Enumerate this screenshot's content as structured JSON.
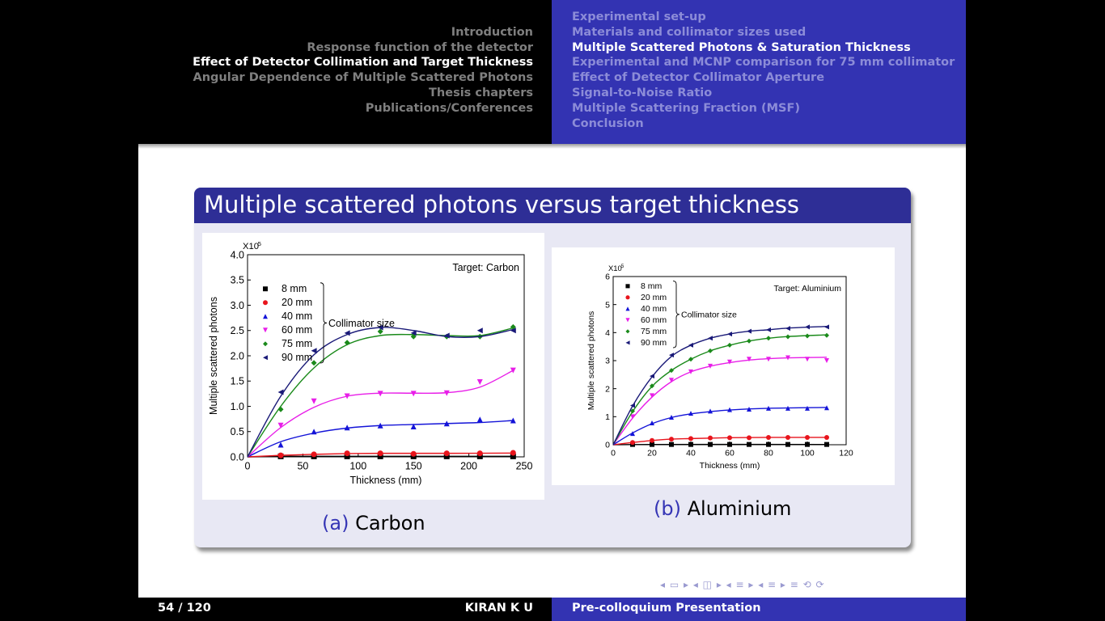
{
  "header": {
    "sections": [
      "Introduction",
      "Response function of the detector",
      "Effect of Detector Collimation and Target Thickness",
      "Angular Dependence of Multiple Scattered Photons",
      "Thesis chapters",
      "Publications/Conferences"
    ],
    "subsections": [
      "Experimental set-up",
      "Materials and collimator sizes used",
      "Multiple Scattered Photons & Saturation Thickness",
      "Experimental and MCNP comparison for 75 mm collimator",
      "Effect of Detector Collimator Aperture",
      "Signal-to-Noise Ratio",
      "Multiple Scattering Fraction (MSF)",
      "Conclusion"
    ],
    "active_section": 2,
    "active_subsection": 2
  },
  "block": {
    "title": "Multiple scattered photons versus target thickness"
  },
  "captions": {
    "a_label": "(a)",
    "a_text": "Carbon",
    "b_label": "(b)",
    "b_text": "Aluminium"
  },
  "footer": {
    "page": "54 / 120",
    "author": "KIRAN K U",
    "title": "Pre-colloquium Presentation"
  },
  "nav_symbols": "◂ ▭ ▸ ◂ ◫ ▸ ◂ ≡ ▸ ◂ ≡ ▸   ≡   ⟲ ⟳",
  "colors": {
    "8 mm": "#000000",
    "20 mm": "#e8141c",
    "40 mm": "#1414d8",
    "60 mm": "#e81ee8",
    "75 mm": "#1a8a1a",
    "90 mm": "#1a1a78"
  },
  "chart_data": [
    {
      "type": "scatter",
      "title": "",
      "annotation": "Target: Carbon",
      "legend_title": "Collimator size",
      "xlabel": "Thickness (mm)",
      "ylabel": "Multiple scattered photons",
      "y_multiplier": "X10",
      "y_exponent": "5",
      "xlim": [
        0,
        250
      ],
      "ylim": [
        0,
        4.0
      ],
      "xticks": [
        "0",
        "50",
        "100",
        "150",
        "200",
        "250"
      ],
      "yticks": [
        "0.0",
        "0.5",
        "1.0",
        "1.5",
        "2.0",
        "2.5",
        "3.0",
        "3.5",
        "4.0"
      ],
      "legend_position": "top-left",
      "x": [
        30,
        60,
        90,
        120,
        150,
        180,
        210,
        240
      ],
      "series": [
        {
          "name": "8 mm",
          "marker": "square",
          "values": [
            0.01,
            0.01,
            0.01,
            0.01,
            0.01,
            0.01,
            0.01,
            0.01
          ],
          "fit": [
            [
              0,
              0
            ],
            [
              40,
              0.01
            ],
            [
              120,
              0.01
            ],
            [
              240,
              0.01
            ]
          ]
        },
        {
          "name": "20 mm",
          "marker": "circle",
          "values": [
            0.03,
            0.05,
            0.07,
            0.07,
            0.06,
            0.07,
            0.07,
            0.08
          ],
          "fit": [
            [
              0,
              0
            ],
            [
              30,
              0.03
            ],
            [
              60,
              0.05
            ],
            [
              90,
              0.065
            ],
            [
              120,
              0.07
            ],
            [
              180,
              0.07
            ],
            [
              240,
              0.075
            ]
          ]
        },
        {
          "name": "40 mm",
          "marker": "triangle-up",
          "values": [
            0.24,
            0.5,
            0.58,
            0.62,
            0.6,
            0.66,
            0.74,
            0.72
          ],
          "fit": [
            [
              0,
              0
            ],
            [
              30,
              0.3
            ],
            [
              60,
              0.47
            ],
            [
              90,
              0.57
            ],
            [
              120,
              0.62
            ],
            [
              150,
              0.64
            ],
            [
              180,
              0.66
            ],
            [
              210,
              0.68
            ],
            [
              240,
              0.72
            ]
          ]
        },
        {
          "name": "60 mm",
          "marker": "triangle-down",
          "values": [
            0.62,
            1.1,
            1.2,
            1.25,
            1.25,
            1.26,
            1.48,
            1.71
          ],
          "fit": [
            [
              0,
              0
            ],
            [
              30,
              0.58
            ],
            [
              60,
              0.98
            ],
            [
              90,
              1.2
            ],
            [
              120,
              1.26
            ],
            [
              150,
              1.26
            ],
            [
              180,
              1.27
            ],
            [
              210,
              1.38
            ],
            [
              240,
              1.71
            ]
          ]
        },
        {
          "name": "75 mm",
          "marker": "diamond",
          "values": [
            0.94,
            1.86,
            2.26,
            2.48,
            2.38,
            2.38,
            2.38,
            2.57
          ],
          "fit": [
            [
              0,
              0
            ],
            [
              30,
              1.0
            ],
            [
              60,
              1.76
            ],
            [
              90,
              2.22
            ],
            [
              120,
              2.4
            ],
            [
              150,
              2.42
            ],
            [
              180,
              2.4
            ],
            [
              210,
              2.4
            ],
            [
              240,
              2.55
            ]
          ]
        },
        {
          "name": "90 mm",
          "marker": "triangle-left",
          "values": [
            1.28,
            2.1,
            2.45,
            2.56,
            2.45,
            2.4,
            2.5,
            2.5
          ],
          "fit": [
            [
              0,
              0
            ],
            [
              30,
              1.2
            ],
            [
              60,
              2.02
            ],
            [
              90,
              2.42
            ],
            [
              120,
              2.56
            ],
            [
              150,
              2.5
            ],
            [
              180,
              2.38
            ],
            [
              210,
              2.38
            ],
            [
              240,
              2.52
            ]
          ]
        }
      ]
    },
    {
      "type": "scatter",
      "title": "",
      "annotation": "Target: Aluminium",
      "legend_title": "Collimator size",
      "xlabel": "Thickness (mm)",
      "ylabel": "Multiple scattered photons",
      "y_multiplier": "X10",
      "y_exponent": "5",
      "xlim": [
        0,
        120
      ],
      "ylim": [
        0,
        6
      ],
      "xticks": [
        "0",
        "20",
        "40",
        "60",
        "80",
        "100",
        "120"
      ],
      "yticks": [
        "0",
        "1",
        "2",
        "3",
        "4",
        "5",
        "6"
      ],
      "legend_position": "top-left",
      "x": [
        10,
        20,
        30,
        40,
        50,
        60,
        70,
        80,
        90,
        100,
        110
      ],
      "series": [
        {
          "name": "8 mm",
          "marker": "square",
          "values": [
            0.01,
            0.01,
            0.01,
            0.01,
            0.01,
            0.01,
            0.01,
            0.01,
            0.01,
            0.01,
            0.01
          ],
          "fit": [
            [
              0,
              0
            ],
            [
              20,
              0.01
            ],
            [
              110,
              0.01
            ]
          ]
        },
        {
          "name": "20 mm",
          "marker": "circle",
          "values": [
            0.08,
            0.15,
            0.2,
            0.22,
            0.24,
            0.25,
            0.25,
            0.26,
            0.26,
            0.26,
            0.26
          ],
          "fit": [
            [
              0,
              0
            ],
            [
              10,
              0.08
            ],
            [
              20,
              0.15
            ],
            [
              30,
              0.2
            ],
            [
              40,
              0.22
            ],
            [
              60,
              0.25
            ],
            [
              80,
              0.26
            ],
            [
              110,
              0.26
            ]
          ]
        },
        {
          "name": "40 mm",
          "marker": "triangle-up",
          "values": [
            0.4,
            0.78,
            0.98,
            1.12,
            1.2,
            1.25,
            1.27,
            1.3,
            1.3,
            1.3,
            1.32
          ],
          "fit": [
            [
              0,
              0
            ],
            [
              10,
              0.42
            ],
            [
              20,
              0.75
            ],
            [
              30,
              0.97
            ],
            [
              40,
              1.1
            ],
            [
              50,
              1.18
            ],
            [
              60,
              1.24
            ],
            [
              80,
              1.3
            ],
            [
              110,
              1.33
            ]
          ]
        },
        {
          "name": "60 mm",
          "marker": "triangle-down",
          "values": [
            1.0,
            1.75,
            2.3,
            2.6,
            2.8,
            2.95,
            3.05,
            3.05,
            3.1,
            3.05,
            3.0
          ],
          "fit": [
            [
              0,
              0
            ],
            [
              10,
              0.95
            ],
            [
              20,
              1.7
            ],
            [
              30,
              2.25
            ],
            [
              40,
              2.6
            ],
            [
              50,
              2.8
            ],
            [
              60,
              2.93
            ],
            [
              70,
              3.02
            ],
            [
              80,
              3.07
            ],
            [
              90,
              3.1
            ],
            [
              110,
              3.12
            ]
          ]
        },
        {
          "name": "75 mm",
          "marker": "diamond",
          "values": [
            1.2,
            2.1,
            2.65,
            3.05,
            3.35,
            3.55,
            3.7,
            3.8,
            3.85,
            3.88,
            3.9
          ],
          "fit": [
            [
              0,
              0
            ],
            [
              10,
              1.18
            ],
            [
              20,
              2.08
            ],
            [
              30,
              2.65
            ],
            [
              40,
              3.05
            ],
            [
              50,
              3.35
            ],
            [
              60,
              3.55
            ],
            [
              70,
              3.7
            ],
            [
              80,
              3.8
            ],
            [
              90,
              3.86
            ],
            [
              110,
              3.92
            ]
          ]
        },
        {
          "name": "90 mm",
          "marker": "triangle-left",
          "values": [
            1.4,
            2.45,
            3.2,
            3.55,
            3.8,
            3.95,
            4.05,
            4.1,
            4.15,
            4.2,
            4.2
          ],
          "fit": [
            [
              0,
              0
            ],
            [
              10,
              1.38
            ],
            [
              20,
              2.42
            ],
            [
              30,
              3.15
            ],
            [
              40,
              3.55
            ],
            [
              50,
              3.8
            ],
            [
              60,
              3.95
            ],
            [
              70,
              4.05
            ],
            [
              80,
              4.1
            ],
            [
              90,
              4.16
            ],
            [
              110,
              4.22
            ]
          ]
        }
      ]
    }
  ]
}
